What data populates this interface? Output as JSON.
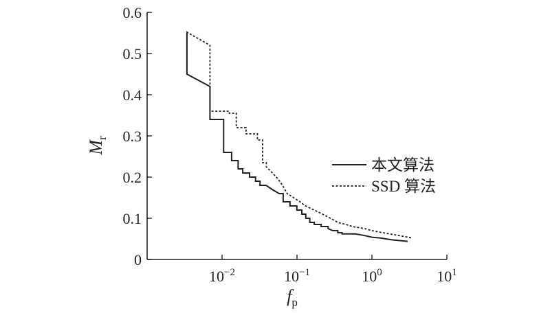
{
  "chart_data": {
    "type": "line",
    "x_scale": "log",
    "xlim": [
      0.001,
      10
    ],
    "ylim": [
      0,
      0.6
    ],
    "xlabel": "f",
    "xlabel_sub": "p",
    "ylabel": "M",
    "ylabel_sub": "r",
    "x_ticks": [
      {
        "value": 0.01,
        "base": "10",
        "exp": "−2"
      },
      {
        "value": 0.1,
        "base": "10",
        "exp": "−1"
      },
      {
        "value": 1,
        "base": "10",
        "exp": "0"
      },
      {
        "value": 10,
        "base": "10",
        "exp": "1"
      }
    ],
    "y_ticks": [
      {
        "value": 0,
        "label": "0"
      },
      {
        "value": 0.1,
        "label": "0.1"
      },
      {
        "value": 0.2,
        "label": "0.2"
      },
      {
        "value": 0.3,
        "label": "0.3"
      },
      {
        "value": 0.4,
        "label": "0.4"
      },
      {
        "value": 0.5,
        "label": "0.5"
      },
      {
        "value": 0.6,
        "label": "0.6"
      }
    ],
    "grid": false,
    "legend_position": "right-middle",
    "series": [
      {
        "name": "本文算法",
        "style": "solid",
        "color": "#231f20",
        "points": [
          [
            0.0034,
            0.55
          ],
          [
            0.0034,
            0.45
          ],
          [
            0.0069,
            0.42
          ],
          [
            0.0069,
            0.34
          ],
          [
            0.0105,
            0.34
          ],
          [
            0.0105,
            0.26
          ],
          [
            0.0134,
            0.26
          ],
          [
            0.0134,
            0.24
          ],
          [
            0.0164,
            0.24
          ],
          [
            0.0164,
            0.22
          ],
          [
            0.0189,
            0.22
          ],
          [
            0.0189,
            0.21
          ],
          [
            0.0233,
            0.21
          ],
          [
            0.0233,
            0.2
          ],
          [
            0.028,
            0.2
          ],
          [
            0.028,
            0.19
          ],
          [
            0.0321,
            0.19
          ],
          [
            0.0321,
            0.18
          ],
          [
            0.0387,
            0.18
          ],
          [
            0.0465,
            0.17
          ],
          [
            0.0577,
            0.16
          ],
          [
            0.0654,
            0.16
          ],
          [
            0.0654,
            0.14
          ],
          [
            0.0807,
            0.14
          ],
          [
            0.0807,
            0.13
          ],
          [
            0.0995,
            0.13
          ],
          [
            0.0995,
            0.12
          ],
          [
            0.116,
            0.12
          ],
          [
            0.116,
            0.11
          ],
          [
            0.131,
            0.11
          ],
          [
            0.131,
            0.1
          ],
          [
            0.148,
            0.1
          ],
          [
            0.148,
            0.09
          ],
          [
            0.17,
            0.09
          ],
          [
            0.17,
            0.085
          ],
          [
            0.21,
            0.085
          ],
          [
            0.21,
            0.08
          ],
          [
            0.26,
            0.08
          ],
          [
            0.26,
            0.075
          ],
          [
            0.3,
            0.07
          ],
          [
            0.35,
            0.07
          ],
          [
            0.35,
            0.065
          ],
          [
            0.4,
            0.065
          ],
          [
            0.4,
            0.062
          ],
          [
            0.6,
            0.062
          ],
          [
            0.8,
            0.058
          ],
          [
            1.0,
            0.054
          ],
          [
            1.3,
            0.052
          ],
          [
            1.8,
            0.048
          ],
          [
            3.0,
            0.044
          ]
        ]
      },
      {
        "name": "SSD 算法",
        "style": "dashed",
        "color": "#231f20",
        "points": [
          [
            0.0034,
            0.45
          ],
          [
            0.0034,
            0.552
          ],
          [
            0.0069,
            0.52
          ],
          [
            0.0069,
            0.36
          ],
          [
            0.0125,
            0.36
          ],
          [
            0.0125,
            0.355
          ],
          [
            0.0155,
            0.355
          ],
          [
            0.0155,
            0.32
          ],
          [
            0.0209,
            0.32
          ],
          [
            0.0209,
            0.305
          ],
          [
            0.0296,
            0.305
          ],
          [
            0.0296,
            0.29
          ],
          [
            0.0347,
            0.29
          ],
          [
            0.0347,
            0.235
          ],
          [
            0.039,
            0.235
          ],
          [
            0.039,
            0.225
          ],
          [
            0.047,
            0.21
          ],
          [
            0.056,
            0.195
          ],
          [
            0.064,
            0.18
          ],
          [
            0.074,
            0.16
          ],
          [
            0.09,
            0.15
          ],
          [
            0.11,
            0.14
          ],
          [
            0.13,
            0.13
          ],
          [
            0.17,
            0.12
          ],
          [
            0.22,
            0.11
          ],
          [
            0.28,
            0.1
          ],
          [
            0.35,
            0.09
          ],
          [
            0.45,
            0.085
          ],
          [
            0.55,
            0.08
          ],
          [
            0.8,
            0.075
          ],
          [
            1.0,
            0.07
          ],
          [
            1.4,
            0.065
          ],
          [
            2.0,
            0.06
          ],
          [
            3.5,
            0.052
          ]
        ]
      }
    ]
  }
}
